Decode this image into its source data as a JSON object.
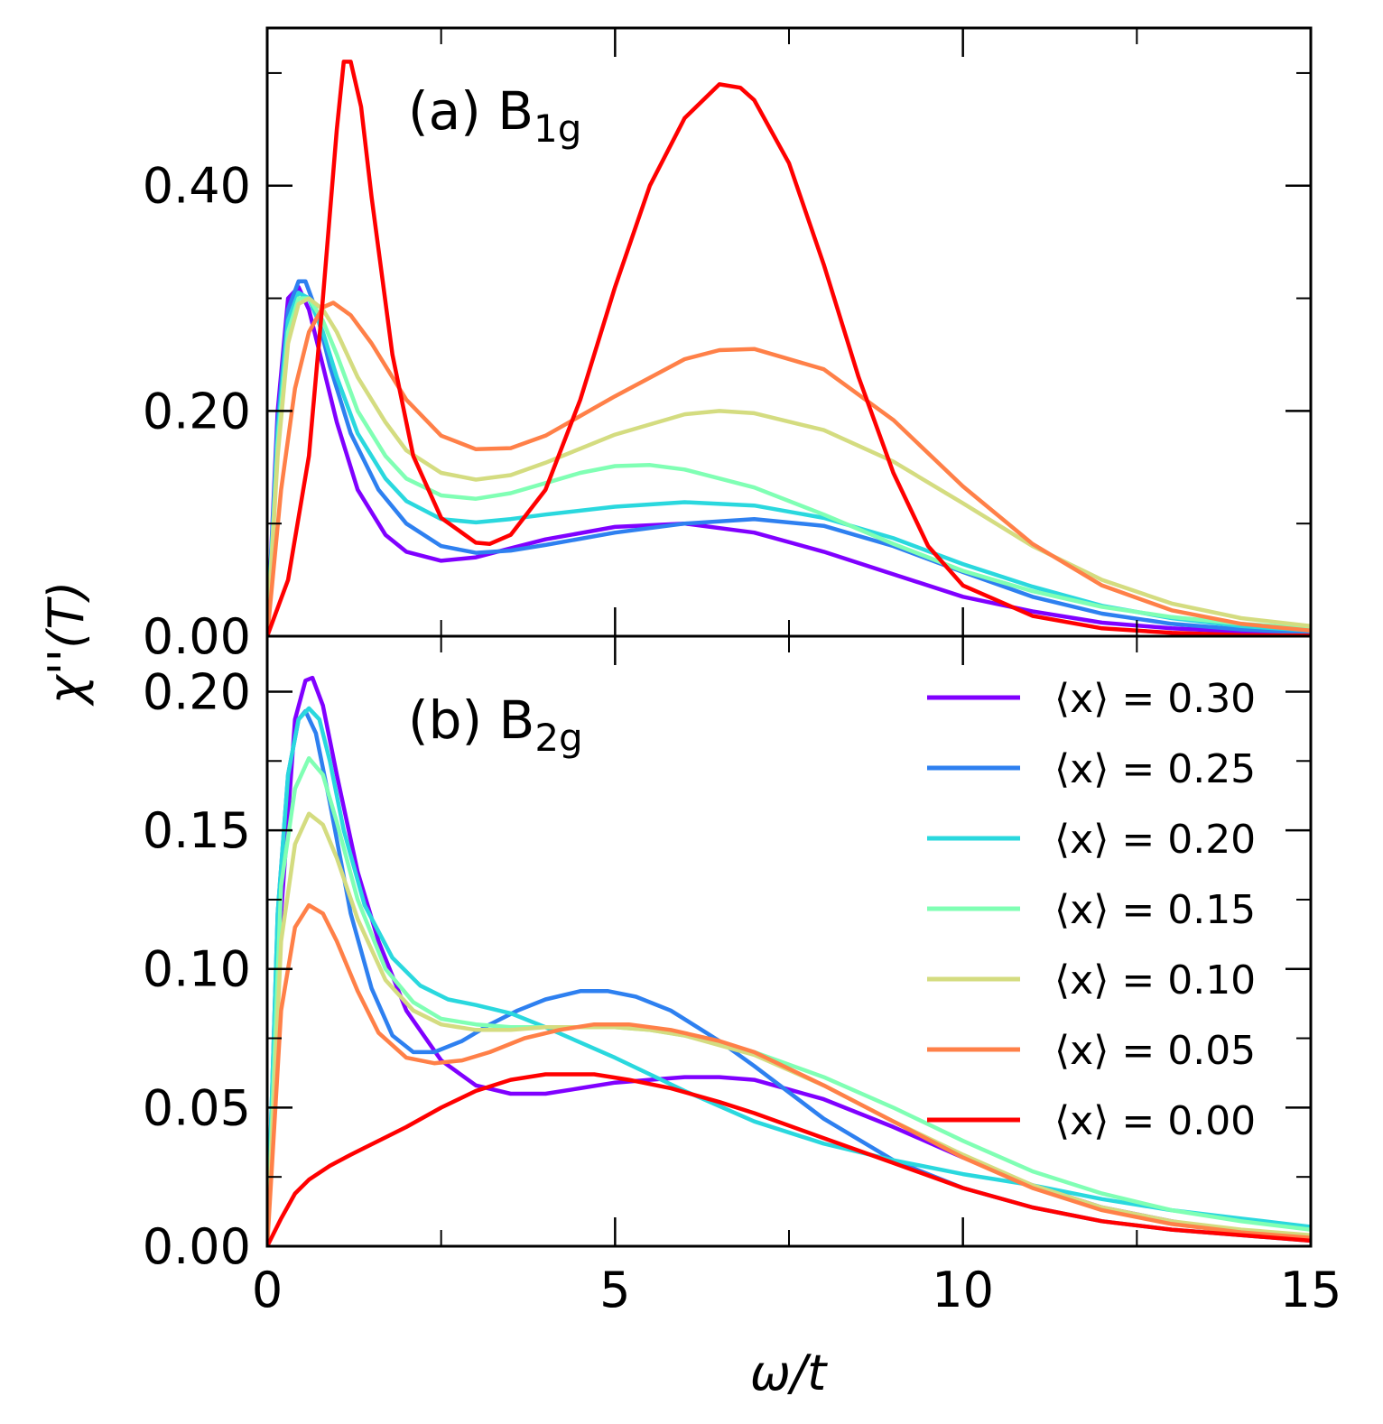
{
  "figure": {
    "ylabel": "χ''(T)",
    "xlabel": "ω/t",
    "xlim": [
      0,
      15
    ],
    "xticks": [
      "0",
      "5",
      "10",
      "15"
    ],
    "xtick_values": [
      0,
      5,
      10,
      15
    ],
    "xminor_values": [
      2.5,
      7.5,
      12.5
    ]
  },
  "legend": [
    {
      "label": "⟨x⟩ = 0.30",
      "color": "#8000ff"
    },
    {
      "label": "⟨x⟩ = 0.25",
      "color": "#2e80f0"
    },
    {
      "label": "⟨x⟩ = 0.20",
      "color": "#2ad8de"
    },
    {
      "label": "⟨x⟩ = 0.15",
      "color": "#80ffb4"
    },
    {
      "label": "⟨x⟩ = 0.10",
      "color": "#d4dc80"
    },
    {
      "label": "⟨x⟩ = 0.05",
      "color": "#ff8048"
    },
    {
      "label": "⟨x⟩ = 0.00",
      "color": "#ff0000"
    }
  ],
  "chart_data": [
    {
      "type": "line",
      "panel_label": "(a) B",
      "panel_sub": "1g",
      "xlim": [
        0,
        15
      ],
      "ylim": [
        0,
        0.54
      ],
      "yticks": [
        "0.00",
        "0.20",
        "0.40"
      ],
      "ytick_values": [
        0,
        0.2,
        0.4
      ],
      "yminor_values": [
        0.1,
        0.3,
        0.5
      ],
      "series": [
        {
          "name": "⟨x⟩ = 0.30",
          "color": "#8000ff",
          "x": [
            0,
            0.15,
            0.3,
            0.45,
            0.6,
            0.8,
            1.0,
            1.3,
            1.7,
            2.0,
            2.5,
            3.0,
            3.5,
            4.0,
            5.0,
            6.0,
            7.0,
            8.0,
            9.0,
            10.0,
            11.0,
            12.0,
            13.0,
            14.0,
            15.0
          ],
          "y": [
            0,
            0.2,
            0.3,
            0.31,
            0.29,
            0.24,
            0.19,
            0.13,
            0.09,
            0.075,
            0.067,
            0.07,
            0.078,
            0.086,
            0.097,
            0.1,
            0.092,
            0.075,
            0.055,
            0.035,
            0.022,
            0.012,
            0.007,
            0.004,
            0.002
          ]
        },
        {
          "name": "⟨x⟩ = 0.25",
          "color": "#2e80f0",
          "x": [
            0,
            0.15,
            0.3,
            0.45,
            0.55,
            0.7,
            0.9,
            1.2,
            1.6,
            2.0,
            2.5,
            3.0,
            3.5,
            4.0,
            5.0,
            6.0,
            7.0,
            8.0,
            9.0,
            10.0,
            11.0,
            12.0,
            13.0,
            14.0,
            15.0
          ],
          "y": [
            0,
            0.19,
            0.29,
            0.315,
            0.315,
            0.29,
            0.24,
            0.18,
            0.13,
            0.1,
            0.08,
            0.074,
            0.076,
            0.081,
            0.092,
            0.1,
            0.104,
            0.098,
            0.08,
            0.057,
            0.035,
            0.02,
            0.011,
            0.006,
            0.003
          ]
        },
        {
          "name": "⟨x⟩ = 0.20",
          "color": "#2ad8de",
          "x": [
            0,
            0.15,
            0.3,
            0.45,
            0.6,
            0.8,
            1.0,
            1.3,
            1.7,
            2.0,
            2.5,
            3.0,
            3.5,
            4.0,
            5.0,
            6.0,
            7.0,
            8.0,
            9.0,
            10.0,
            11.0,
            12.0,
            13.0,
            14.0,
            15.0
          ],
          "y": [
            0,
            0.18,
            0.28,
            0.305,
            0.3,
            0.27,
            0.23,
            0.18,
            0.14,
            0.12,
            0.104,
            0.101,
            0.104,
            0.108,
            0.115,
            0.119,
            0.116,
            0.105,
            0.087,
            0.064,
            0.044,
            0.027,
            0.016,
            0.009,
            0.005
          ]
        },
        {
          "name": "⟨x⟩ = 0.15",
          "color": "#80ffb4",
          "x": [
            0,
            0.15,
            0.3,
            0.45,
            0.6,
            0.8,
            1.0,
            1.3,
            1.7,
            2.0,
            2.5,
            3.0,
            3.5,
            4.0,
            4.5,
            5.0,
            5.5,
            6.0,
            7.0,
            8.0,
            9.0,
            10.0,
            11.0,
            12.0,
            13.0,
            14.0,
            15.0
          ],
          "y": [
            0,
            0.17,
            0.27,
            0.3,
            0.3,
            0.28,
            0.25,
            0.2,
            0.16,
            0.14,
            0.125,
            0.122,
            0.127,
            0.136,
            0.145,
            0.151,
            0.152,
            0.148,
            0.132,
            0.108,
            0.082,
            0.058,
            0.04,
            0.026,
            0.017,
            0.011,
            0.007
          ]
        },
        {
          "name": "⟨x⟩ = 0.10",
          "color": "#d4dc80",
          "x": [
            0,
            0.15,
            0.3,
            0.45,
            0.6,
            0.8,
            1.0,
            1.3,
            1.7,
            2.0,
            2.5,
            3.0,
            3.5,
            4.0,
            5.0,
            6.0,
            6.5,
            7.0,
            8.0,
            9.0,
            10.0,
            11.0,
            12.0,
            13.0,
            14.0,
            15.0
          ],
          "y": [
            0,
            0.16,
            0.26,
            0.295,
            0.3,
            0.29,
            0.27,
            0.23,
            0.19,
            0.165,
            0.145,
            0.139,
            0.143,
            0.154,
            0.179,
            0.197,
            0.2,
            0.198,
            0.183,
            0.155,
            0.118,
            0.08,
            0.05,
            0.029,
            0.016,
            0.009
          ]
        },
        {
          "name": "⟨x⟩ = 0.05",
          "color": "#ff8048",
          "x": [
            0,
            0.2,
            0.4,
            0.6,
            0.8,
            0.95,
            1.2,
            1.5,
            2.0,
            2.5,
            3.0,
            3.5,
            4.0,
            5.0,
            6.0,
            6.5,
            7.0,
            8.0,
            9.0,
            10.0,
            11.0,
            12.0,
            13.0,
            14.0,
            15.0
          ],
          "y": [
            0,
            0.13,
            0.22,
            0.27,
            0.292,
            0.296,
            0.285,
            0.26,
            0.21,
            0.178,
            0.166,
            0.167,
            0.178,
            0.213,
            0.246,
            0.254,
            0.255,
            0.237,
            0.192,
            0.133,
            0.082,
            0.045,
            0.023,
            0.011,
            0.005
          ]
        },
        {
          "name": "⟨x⟩ = 0.00",
          "color": "#ff0000",
          "x": [
            0,
            0.3,
            0.6,
            0.8,
            1.0,
            1.1,
            1.2,
            1.35,
            1.5,
            1.8,
            2.1,
            2.5,
            3.0,
            3.2,
            3.5,
            4.0,
            4.5,
            5.0,
            5.5,
            6.0,
            6.5,
            6.8,
            7.0,
            7.5,
            8.0,
            8.5,
            9.0,
            9.5,
            10.0,
            11.0,
            12.0,
            13.0,
            14.0,
            15.0
          ],
          "y": [
            0,
            0.05,
            0.16,
            0.3,
            0.45,
            0.51,
            0.51,
            0.47,
            0.39,
            0.25,
            0.16,
            0.105,
            0.083,
            0.082,
            0.09,
            0.13,
            0.21,
            0.31,
            0.4,
            0.46,
            0.49,
            0.487,
            0.476,
            0.42,
            0.33,
            0.23,
            0.145,
            0.08,
            0.045,
            0.018,
            0.007,
            0.003,
            0.001,
            0.0005
          ]
        }
      ]
    },
    {
      "type": "line",
      "panel_label": "(b) B",
      "panel_sub": "2g",
      "xlim": [
        0,
        15
      ],
      "ylim": [
        0,
        0.22
      ],
      "yticks": [
        "0.00",
        "0.05",
        "0.10",
        "0.15",
        "0.20"
      ],
      "ytick_values": [
        0,
        0.05,
        0.1,
        0.15,
        0.2
      ],
      "yminor_values": [
        0.025,
        0.075,
        0.125,
        0.175
      ],
      "series": [
        {
          "name": "⟨x⟩ = 0.30",
          "color": "#8000ff",
          "x": [
            0,
            0.2,
            0.4,
            0.55,
            0.65,
            0.8,
            1.0,
            1.3,
            1.6,
            2.0,
            2.5,
            3.0,
            3.5,
            4.0,
            4.5,
            5.0,
            5.5,
            6.0,
            6.5,
            7.0,
            8.0,
            9.0,
            10.0,
            11.0,
            12.0,
            13.0,
            14.0,
            15.0
          ],
          "y": [
            0,
            0.12,
            0.19,
            0.204,
            0.205,
            0.195,
            0.17,
            0.135,
            0.11,
            0.085,
            0.067,
            0.058,
            0.055,
            0.055,
            0.057,
            0.059,
            0.06,
            0.061,
            0.061,
            0.06,
            0.053,
            0.043,
            0.032,
            0.022,
            0.014,
            0.009,
            0.005,
            0.003
          ]
        },
        {
          "name": "⟨x⟩ = 0.25",
          "color": "#2e80f0",
          "x": [
            0,
            0.15,
            0.3,
            0.45,
            0.55,
            0.7,
            0.9,
            1.2,
            1.5,
            1.8,
            2.1,
            2.4,
            2.8,
            3.2,
            3.6,
            4.0,
            4.5,
            4.9,
            5.3,
            5.8,
            6.5,
            7.0,
            8.0,
            9.0,
            10.0,
            11.0,
            12.0,
            13.0,
            14.0,
            15.0
          ],
          "y": [
            0,
            0.12,
            0.17,
            0.19,
            0.193,
            0.185,
            0.16,
            0.12,
            0.093,
            0.076,
            0.07,
            0.07,
            0.074,
            0.08,
            0.085,
            0.089,
            0.092,
            0.092,
            0.09,
            0.085,
            0.074,
            0.065,
            0.046,
            0.031,
            0.021,
            0.014,
            0.009,
            0.006,
            0.004,
            0.002
          ]
        },
        {
          "name": "⟨x⟩ = 0.20",
          "color": "#2ad8de",
          "x": [
            0,
            0.15,
            0.3,
            0.45,
            0.6,
            0.75,
            0.9,
            1.1,
            1.4,
            1.8,
            2.2,
            2.6,
            3.0,
            3.5,
            4.0,
            5.0,
            6.0,
            7.0,
            8.0,
            9.0,
            10.0,
            11.0,
            12.0,
            13.0,
            14.0,
            15.0
          ],
          "y": [
            0,
            0.12,
            0.17,
            0.19,
            0.194,
            0.19,
            0.175,
            0.15,
            0.123,
            0.104,
            0.094,
            0.089,
            0.087,
            0.084,
            0.079,
            0.068,
            0.056,
            0.045,
            0.037,
            0.031,
            0.026,
            0.022,
            0.017,
            0.013,
            0.01,
            0.007
          ]
        },
        {
          "name": "⟨x⟩ = 0.15",
          "color": "#80ffb4",
          "x": [
            0,
            0.2,
            0.4,
            0.6,
            0.8,
            1.0,
            1.3,
            1.7,
            2.1,
            2.5,
            3.0,
            3.5,
            4.0,
            4.5,
            5.0,
            5.5,
            6.0,
            7.0,
            8.0,
            9.0,
            10.0,
            11.0,
            12.0,
            13.0,
            14.0,
            15.0
          ],
          "y": [
            0,
            0.13,
            0.165,
            0.176,
            0.17,
            0.153,
            0.125,
            0.1,
            0.088,
            0.082,
            0.08,
            0.079,
            0.079,
            0.079,
            0.079,
            0.078,
            0.076,
            0.07,
            0.061,
            0.05,
            0.038,
            0.027,
            0.019,
            0.013,
            0.009,
            0.006
          ]
        },
        {
          "name": "⟨x⟩ = 0.10",
          "color": "#d4dc80",
          "x": [
            0,
            0.2,
            0.4,
            0.6,
            0.8,
            1.0,
            1.3,
            1.7,
            2.1,
            2.5,
            3.0,
            3.5,
            4.0,
            4.5,
            5.0,
            5.5,
            6.0,
            7.0,
            8.0,
            9.0,
            10.0,
            11.0,
            12.0,
            13.0,
            14.0,
            15.0
          ],
          "y": [
            0,
            0.11,
            0.145,
            0.156,
            0.152,
            0.14,
            0.118,
            0.096,
            0.085,
            0.08,
            0.078,
            0.078,
            0.079,
            0.079,
            0.079,
            0.078,
            0.076,
            0.069,
            0.058,
            0.045,
            0.033,
            0.022,
            0.014,
            0.009,
            0.006,
            0.004
          ]
        },
        {
          "name": "⟨x⟩ = 0.05",
          "color": "#ff8048",
          "x": [
            0,
            0.2,
            0.4,
            0.6,
            0.8,
            1.0,
            1.3,
            1.6,
            2.0,
            2.4,
            2.8,
            3.2,
            3.7,
            4.2,
            4.7,
            5.2,
            5.8,
            6.5,
            7.0,
            8.0,
            9.0,
            10.0,
            11.0,
            12.0,
            13.0,
            14.0,
            15.0
          ],
          "y": [
            0,
            0.085,
            0.115,
            0.123,
            0.12,
            0.11,
            0.092,
            0.077,
            0.068,
            0.066,
            0.067,
            0.07,
            0.075,
            0.078,
            0.08,
            0.08,
            0.078,
            0.074,
            0.07,
            0.058,
            0.045,
            0.032,
            0.021,
            0.013,
            0.008,
            0.005,
            0.003
          ]
        },
        {
          "name": "⟨x⟩ = 0.00",
          "color": "#ff0000",
          "x": [
            0,
            0.2,
            0.4,
            0.6,
            0.9,
            1.2,
            1.6,
            2.0,
            2.5,
            3.0,
            3.5,
            4.0,
            4.3,
            4.7,
            5.2,
            5.8,
            6.5,
            7.0,
            8.0,
            9.0,
            10.0,
            11.0,
            12.0,
            13.0,
            14.0,
            15.0
          ],
          "y": [
            0,
            0.01,
            0.019,
            0.024,
            0.029,
            0.033,
            0.038,
            0.043,
            0.05,
            0.056,
            0.06,
            0.062,
            0.062,
            0.062,
            0.06,
            0.057,
            0.052,
            0.048,
            0.039,
            0.03,
            0.021,
            0.014,
            0.009,
            0.006,
            0.004,
            0.002
          ]
        }
      ]
    }
  ]
}
